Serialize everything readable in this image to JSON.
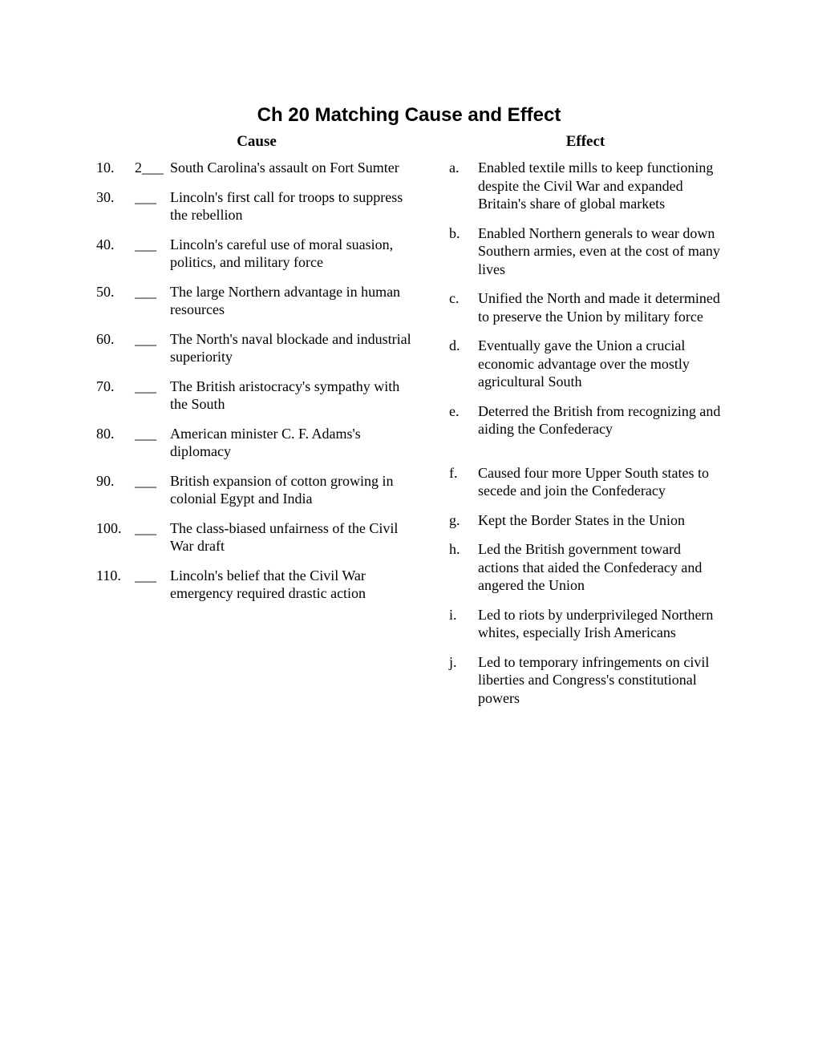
{
  "title": "Ch 20        Matching Cause and Effect",
  "headers": {
    "cause": "Cause",
    "effect": "Effect"
  },
  "causes": [
    {
      "num": "10.",
      "blank": "2___",
      "text": "South Carolina's assault on Fort Sumter"
    },
    {
      "num": "30.",
      "blank": "___",
      "text": "Lincoln's first call for troops to suppress the rebellion"
    },
    {
      "num": "40.",
      "blank": "___",
      "text": "Lincoln's careful use of moral suasion, politics, and military force"
    },
    {
      "num": "50.",
      "blank": "___",
      "text": "The large Northern advantage in human resources"
    },
    {
      "num": "60.",
      "blank": "___",
      "text": "The North's naval blockade and industrial superiority"
    },
    {
      "num": "70.",
      "blank": "___",
      "text": "The British aristocracy's sympathy with the South"
    },
    {
      "num": "80.",
      "blank": "___",
      "text": "American minister C. F. Adams's diplomacy"
    },
    {
      "num": "90.",
      "blank": "___",
      "text": "British expansion of cotton growing in colonial Egypt and India"
    },
    {
      "num": "100.",
      "blank": "___",
      "text": "The class-biased unfairness of the Civil War draft"
    },
    {
      "num": "110.",
      "blank": "___",
      "text": "Lincoln's belief that the Civil War emergency required drastic action"
    }
  ],
  "effects": [
    {
      "letter": "a.",
      "text": "Enabled textile mills to keep functioning despite the Civil War and expanded Britain's share of global markets"
    },
    {
      "letter": "b.",
      "text": "Enabled Northern generals to wear down Southern armies, even at the cost of many lives"
    },
    {
      "letter": "c.",
      "text": "Unified the North and made it determined to preserve the Union by military force"
    },
    {
      "letter": "d.",
      "text": "Eventually gave the Union a crucial economic advantage over the mostly agricultural South"
    },
    {
      "letter": "e.",
      "text": "Deterred the British from recognizing and aiding the Confederacy"
    },
    {
      "letter": "f.",
      "text": "Caused four more Upper South states to secede and join the Confederacy",
      "gap_before": true
    },
    {
      "letter": "g.",
      "text": "Kept the Border States in the Union"
    },
    {
      "letter": "h.",
      "text": "Led the British government toward actions that aided the Confederacy and angered the Union"
    },
    {
      "letter": "i.",
      "text": "Led to riots by underprivileged Northern whites, especially Irish Americans"
    },
    {
      "letter": "j.",
      "text": "Led to temporary infringements on civil liberties and Congress's constitutional powers"
    }
  ]
}
